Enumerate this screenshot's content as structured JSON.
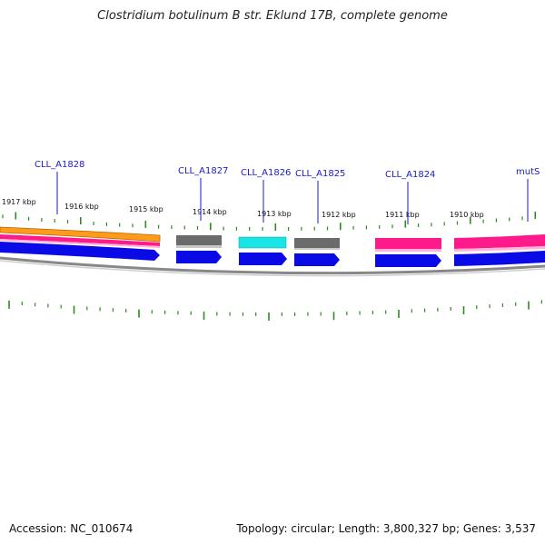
{
  "title": "Clostridium botulinum B str. Eklund 17B, complete genome",
  "accession": "Accession: NC_010674",
  "summary": "Topology: circular; Length: 3,800,327 bp; Genes: 3,537",
  "colors": {
    "tick": "#2e8b22",
    "label": "#1a1acc",
    "cds": "#0a0ae6",
    "backbone": "#888888",
    "gray_feature": "#6b6b6b",
    "pink_feature": "#ff1a8c",
    "cyan_feature": "#19e5e5",
    "orange_feature": "#ff9a1a"
  },
  "kbp_labels": [
    "1917 kbp",
    "1916 kbp",
    "1915 kbp",
    "1914 kbp",
    "1913 kbp",
    "1912 kbp",
    "1911 kbp",
    "1910 kbp"
  ],
  "genes": [
    {
      "label": "CLL_A1828"
    },
    {
      "label": "CLL_A1827"
    },
    {
      "label": "CLL_A1826"
    },
    {
      "label": "CLL_A1825"
    },
    {
      "label": "CLL_A1824"
    },
    {
      "label": "mutS"
    }
  ]
}
